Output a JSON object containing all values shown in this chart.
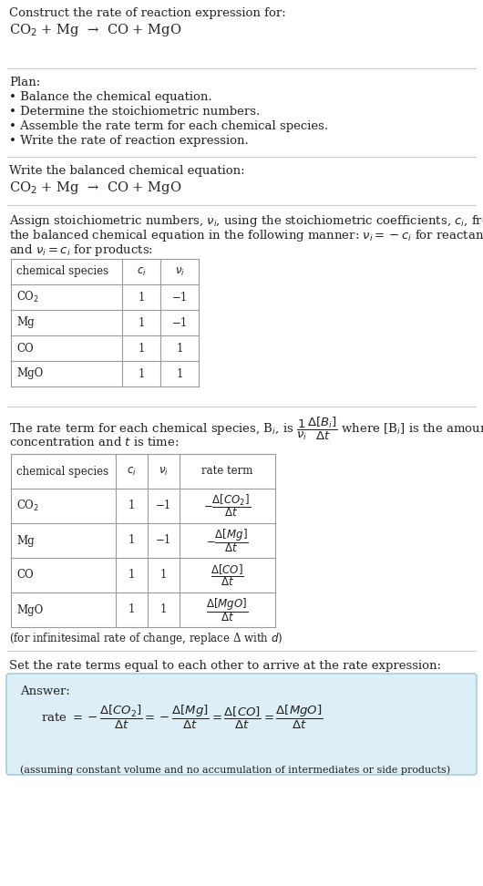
{
  "bg_color": "#ffffff",
  "text_color": "#222222",
  "light_blue_bg": "#ddeef6",
  "light_blue_border": "#aaccdd",
  "title_line1": "Construct the rate of reaction expression for:",
  "title_eq": "CO$_2$ + Mg  →  CO + MgO",
  "plan_header": "Plan:",
  "plan_items": [
    "• Balance the chemical equation.",
    "• Determine the stoichiometric numbers.",
    "• Assemble the rate term for each chemical species.",
    "• Write the rate of reaction expression."
  ],
  "balanced_header": "Write the balanced chemical equation:",
  "balanced_eq": "CO$_2$ + Mg  →  CO + MgO",
  "assign_text1": "Assign stoichiometric numbers, $\\nu_i$, using the stoichiometric coefficients, $c_i$, from",
  "assign_text2": "the balanced chemical equation in the following manner: $\\nu_i = -c_i$ for reactants",
  "assign_text3": "and $\\nu_i = c_i$ for products:",
  "table1_headers": [
    "chemical species",
    "$c_i$",
    "$\\nu_i$"
  ],
  "table1_rows": [
    [
      "CO$_2$",
      "1",
      "−1"
    ],
    [
      "Mg",
      "1",
      "−1"
    ],
    [
      "CO",
      "1",
      "1"
    ],
    [
      "MgO",
      "1",
      "1"
    ]
  ],
  "rate_term_text1": "The rate term for each chemical species, B$_i$, is $\\dfrac{1}{\\nu_i}\\dfrac{\\Delta[B_i]}{\\Delta t}$ where [B$_i$] is the amount",
  "rate_term_text2": "concentration and $t$ is time:",
  "table2_headers": [
    "chemical species",
    "$c_i$",
    "$\\nu_i$",
    "rate term"
  ],
  "table2_rows": [
    [
      "CO$_2$",
      "1",
      "−1",
      "$-\\dfrac{\\Delta[CO_2]}{\\Delta t}$"
    ],
    [
      "Mg",
      "1",
      "−1",
      "$-\\dfrac{\\Delta[Mg]}{\\Delta t}$"
    ],
    [
      "CO",
      "1",
      "1",
      "$\\dfrac{\\Delta[CO]}{\\Delta t}$"
    ],
    [
      "MgO",
      "1",
      "1",
      "$\\dfrac{\\Delta[MgO]}{\\Delta t}$"
    ]
  ],
  "infinitesimal_note": "(for infinitesimal rate of change, replace Δ with $d$)",
  "set_rate_text": "Set the rate terms equal to each other to arrive at the rate expression:",
  "answer_label": "Answer:",
  "rate_expression": "rate $= -\\dfrac{\\Delta[CO_2]}{\\Delta t} = -\\dfrac{\\Delta[Mg]}{\\Delta t} = \\dfrac{\\Delta[CO]}{\\Delta t} = \\dfrac{\\Delta[MgO]}{\\Delta t}$",
  "assuming_note": "(assuming constant volume and no accumulation of intermediates or side products)"
}
